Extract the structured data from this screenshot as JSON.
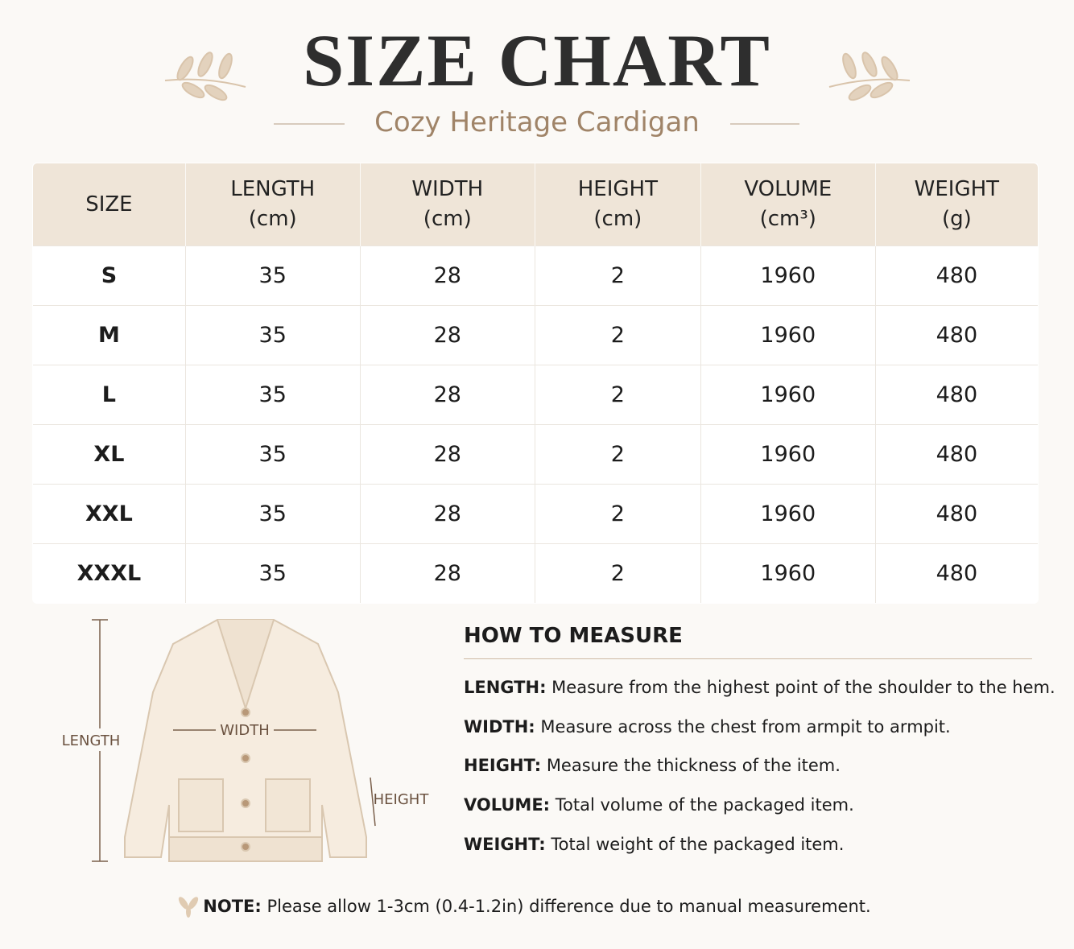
{
  "header": {
    "title": "SIZE CHART",
    "subtitle": "Cozy Heritage Cardigan"
  },
  "table": {
    "headers": [
      {
        "name": "SIZE"
      },
      {
        "name": "LENGTH",
        "unit": "(cm)"
      },
      {
        "name": "WIDTH",
        "unit": "(cm)"
      },
      {
        "name": "HEIGHT",
        "unit": "(cm)"
      },
      {
        "name": "VOLUME",
        "unit": "(cm³)"
      },
      {
        "name": "WEIGHT",
        "unit": "(g)"
      }
    ],
    "rows": [
      [
        "S",
        35,
        28,
        2,
        1960,
        480
      ],
      [
        "M",
        35,
        28,
        2,
        1960,
        480
      ],
      [
        "L",
        35,
        28,
        2,
        1960,
        480
      ],
      [
        "XL",
        35,
        28,
        2,
        1960,
        480
      ],
      [
        "XXL",
        35,
        28,
        2,
        1960,
        480
      ],
      [
        "XXXL",
        35,
        28,
        2,
        1960,
        480
      ]
    ]
  },
  "diagram": {
    "length_label": "LENGTH",
    "width_label": "WIDTH",
    "height_label": "HEIGHT"
  },
  "how_to": {
    "title": "HOW TO MEASURE",
    "items": [
      {
        "term": "LENGTH:",
        "text": "Measure from the highest point of the shoulder to the hem."
      },
      {
        "term": "WIDTH:",
        "text": "Measure across the chest from armpit to armpit."
      },
      {
        "term": "HEIGHT:",
        "text": "Measure the thickness of the item."
      },
      {
        "term": "VOLUME:",
        "text": "Total volume of the packaged item."
      },
      {
        "term": "WEIGHT:",
        "text": "Total weight of the packaged item."
      }
    ]
  },
  "note": {
    "label": "NOTE:",
    "text": "Please allow 1-3cm (0.4-1.2in) difference due to manual measurement."
  }
}
